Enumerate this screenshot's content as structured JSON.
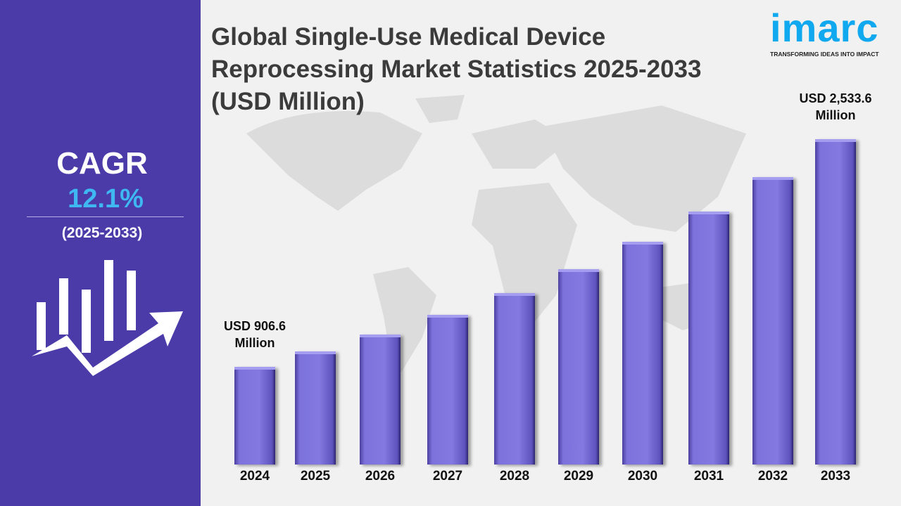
{
  "title": [
    "Global Single-Use Medical Device",
    "Reprocessing Market Statistics 2025-2033",
    "(USD Million)"
  ],
  "logo": {
    "wordmark": "imarc",
    "tagline": "TRANSFORMING IDEAS INTO IMPACT",
    "color": "#10a9f0"
  },
  "sidebar": {
    "cagr_label": "CAGR",
    "cagr_value": "12.1%",
    "period": "(2025-2033)",
    "icon": "bar-chart-growth-arrow-icon",
    "background": "#4a3ba9"
  },
  "chart_data": {
    "type": "bar",
    "title": "Global Single-Use Medical Device Reprocessing Market Statistics 2025-2033 (USD Million)",
    "categories": [
      "2024",
      "2025",
      "2026",
      "2027",
      "2028",
      "2029",
      "2030",
      "2031",
      "2032",
      "2033"
    ],
    "values": [
      906.6,
      1016,
      1139,
      1277,
      1432,
      1605,
      1799,
      2017,
      2261,
      2533.6
    ],
    "annotations": [
      {
        "category": "2024",
        "text": [
          "USD 906.6",
          "Million"
        ]
      },
      {
        "category": "2033",
        "text": [
          "USD 2,533.6",
          "Million"
        ]
      }
    ],
    "bar_color": "#7d72dc",
    "grid": false
  }
}
